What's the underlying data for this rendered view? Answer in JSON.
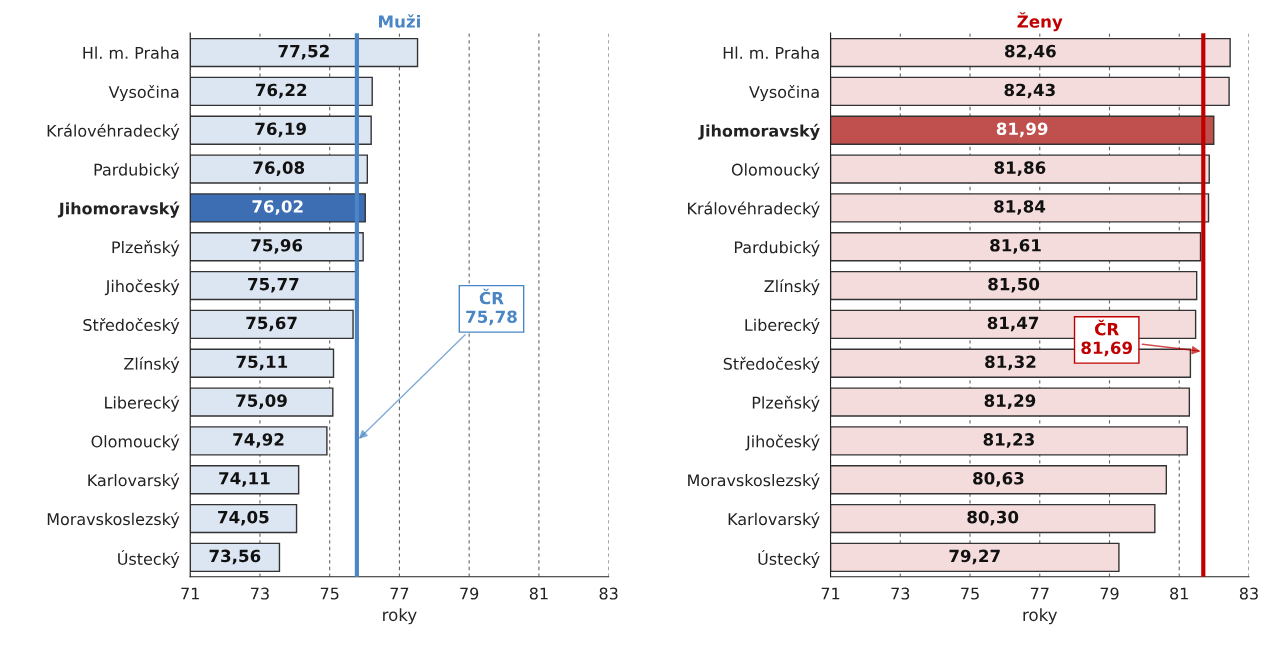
{
  "chart_data": [
    {
      "type": "bar",
      "orientation": "horizontal",
      "title": "Muži",
      "xlabel": "roky",
      "categories": [
        "Hl. m. Praha",
        "Vysočina",
        "Královéhradecký",
        "Pardubický",
        "Jihomoravský",
        "Plzeňský",
        "Jihočeský",
        "Středočeský",
        "Zlínský",
        "Liberecký",
        "Olomoucký",
        "Karlovarský",
        "Moravskoslezský",
        "Ústecký"
      ],
      "values": [
        77.52,
        76.22,
        76.19,
        76.08,
        76.02,
        75.96,
        75.77,
        75.67,
        75.11,
        75.09,
        74.92,
        74.11,
        74.05,
        73.56
      ],
      "value_labels": [
        "77,52",
        "76,22",
        "76,19",
        "76,08",
        "76,02",
        "75,96",
        "75,77",
        "75,67",
        "75,11",
        "75,09",
        "74,92",
        "74,11",
        "74,05",
        "73,56"
      ],
      "colors": [
        "#dce6f2",
        "#dce6f2",
        "#dce6f2",
        "#dce6f2",
        "#3d6eb3",
        "#dce6f2",
        "#dce6f2",
        "#dce6f2",
        "#dce6f2",
        "#dce6f2",
        "#dce6f2",
        "#dce6f2",
        "#dce6f2",
        "#dce6f2"
      ],
      "xlim": [
        71,
        83
      ],
      "xticks": [
        71,
        73,
        75,
        77,
        79,
        81,
        83
      ],
      "grid": "x",
      "ref_lines": [
        {
          "axis": "x",
          "value": 75.78,
          "label": "ČR\n75,78",
          "color": "#4a86c5"
        }
      ]
    },
    {
      "type": "bar",
      "orientation": "horizontal",
      "title": "Ženy",
      "xlabel": "roky",
      "categories": [
        "Hl. m. Praha",
        "Vysočina",
        "Jihomoravský",
        "Olomoucký",
        "Královéhradecký",
        "Pardubický",
        "Zlínský",
        "Liberecký",
        "Středočeský",
        "Plzeňský",
        "Jihočeský",
        "Moravskoslezský",
        "Karlovarský",
        "Ústecký"
      ],
      "values": [
        82.46,
        82.43,
        81.99,
        81.86,
        81.84,
        81.61,
        81.5,
        81.47,
        81.32,
        81.29,
        81.23,
        80.63,
        80.3,
        79.27
      ],
      "value_labels": [
        "82,46",
        "82,43",
        "81,99",
        "81,86",
        "81,84",
        "81,61",
        "81,50",
        "81,47",
        "81,32",
        "81,29",
        "81,23",
        "80,63",
        "80,30",
        "79,27"
      ],
      "colors": [
        "#f5dcdc",
        "#f5dcdc",
        "#c0504d",
        "#f5dcdc",
        "#f5dcdc",
        "#f5dcdc",
        "#f5dcdc",
        "#f5dcdc",
        "#f5dcdc",
        "#f5dcdc",
        "#f5dcdc",
        "#f5dcdc",
        "#f5dcdc",
        "#f5dcdc"
      ],
      "xlim": [
        71,
        83
      ],
      "xticks": [
        71,
        73,
        75,
        77,
        79,
        81,
        83
      ],
      "grid": "x",
      "ref_lines": [
        {
          "axis": "x",
          "value": 81.69,
          "label": "ČR\n81,69",
          "color": "#c00000"
        }
      ]
    }
  ]
}
